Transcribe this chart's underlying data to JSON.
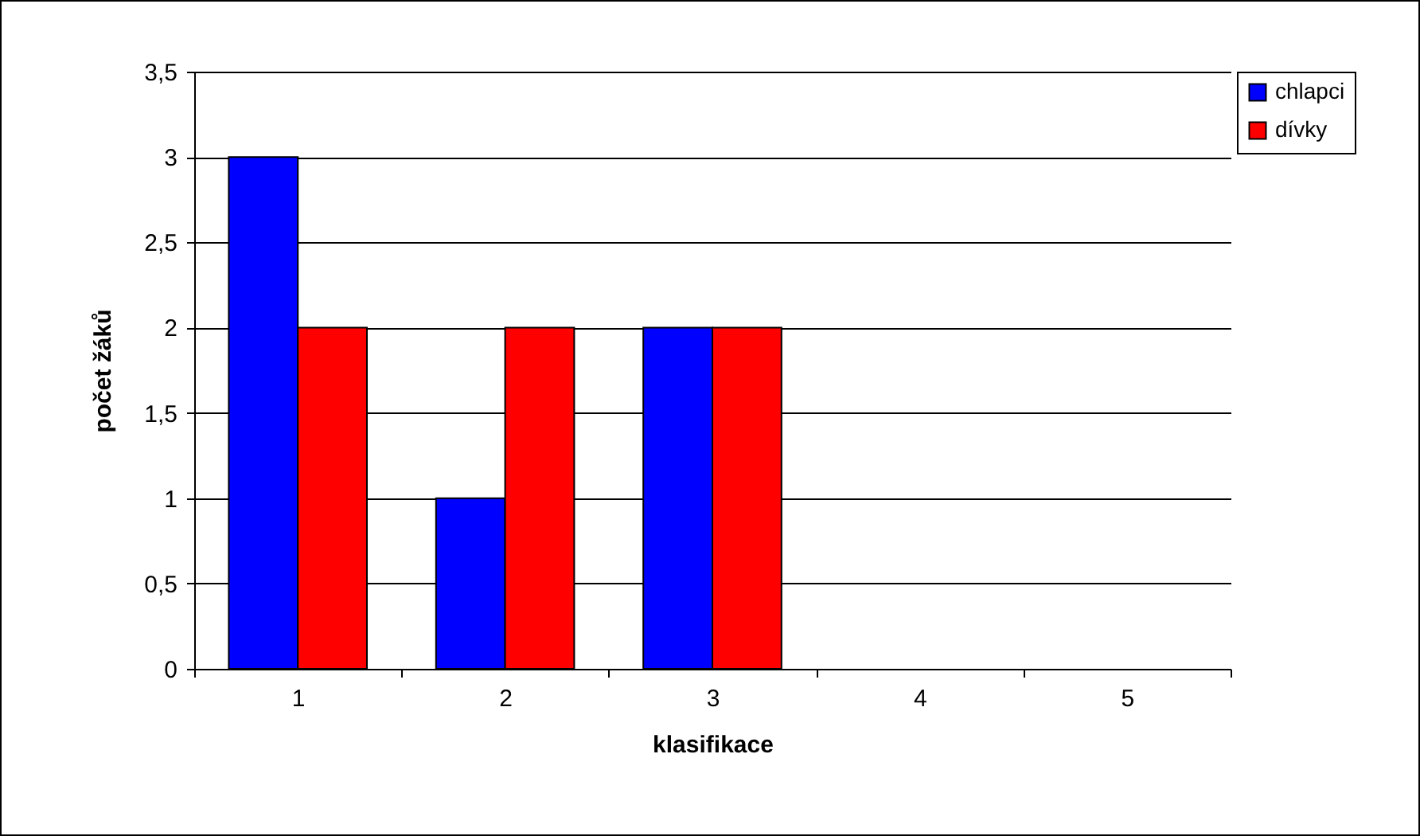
{
  "chart_data": {
    "type": "bar",
    "xlabel": "klasifikace",
    "ylabel": "počet žáků",
    "categories": [
      "1",
      "2",
      "3",
      "4",
      "5"
    ],
    "series": [
      {
        "name": "chlapci",
        "color": "#0000ff",
        "values": [
          3,
          1,
          2,
          0,
          0
        ]
      },
      {
        "name": "dívky",
        "color": "#ff0000",
        "values": [
          2,
          2,
          2,
          0,
          0
        ]
      }
    ],
    "ylim": [
      0,
      3.5
    ],
    "yticks": [
      0,
      {
        "value": 0.5,
        "label": "0,5"
      },
      1,
      {
        "value": 1.5,
        "label": "1,5"
      },
      2,
      {
        "value": 2.5,
        "label": "2,5"
      },
      3,
      {
        "value": 3.5,
        "label": "3,5"
      }
    ],
    "grid": "y",
    "legend": "right"
  }
}
